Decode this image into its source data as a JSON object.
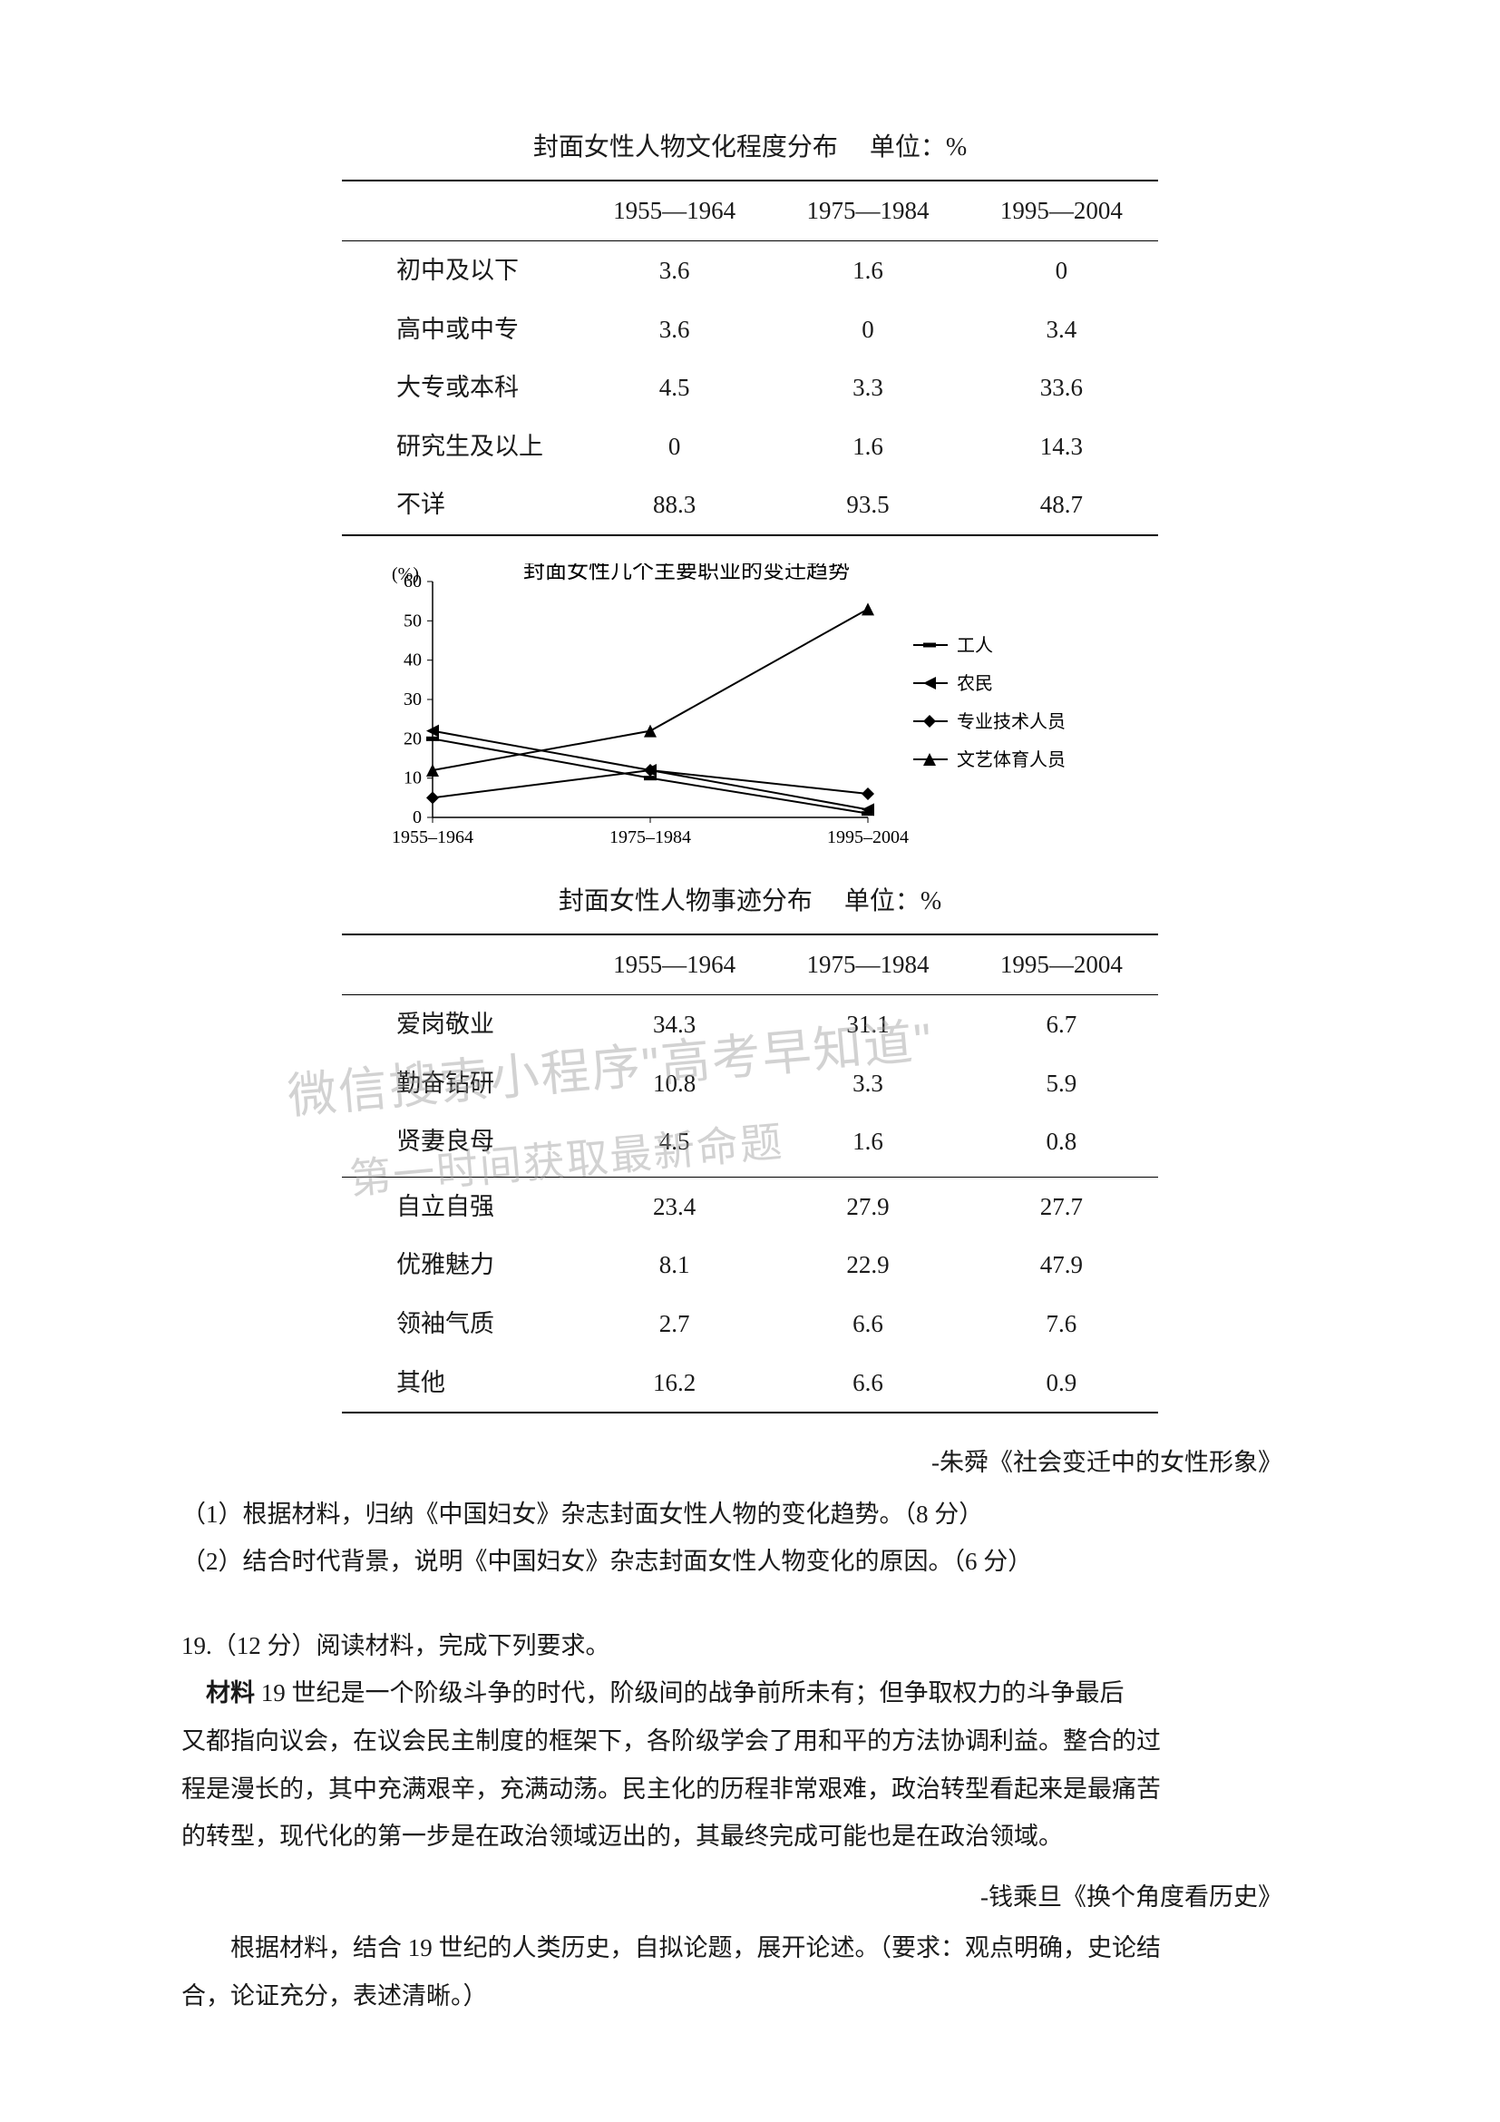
{
  "table1": {
    "caption": "封面女性人物文化程度分布",
    "caption_unit": "单位：%",
    "columns": [
      "1955—1964",
      "1975—1984",
      "1995—2004"
    ],
    "rows": [
      {
        "label": "初中及以下",
        "cells": [
          "3.6",
          "1.6",
          "0"
        ]
      },
      {
        "label": "高中或中专",
        "cells": [
          "3.6",
          "0",
          "3.4"
        ]
      },
      {
        "label": "大专或本科",
        "cells": [
          "4.5",
          "3.3",
          "33.6"
        ]
      },
      {
        "label": "研究生及以上",
        "cells": [
          "0",
          "1.6",
          "14.3"
        ]
      },
      {
        "label": "不详",
        "cells": [
          "88.3",
          "93.5",
          "48.7"
        ]
      }
    ]
  },
  "chart": {
    "type": "line",
    "title": "封面女性几个主要职业的变迁趋势",
    "y_label_unit": "(%)",
    "categories": [
      "1955–1964",
      "1975–1984",
      "1995–2004"
    ],
    "ylim": [
      0,
      60
    ],
    "ytick_step": 10,
    "line_color": "#000000",
    "axis_color": "#000000",
    "label_fontsize": 20,
    "axis_fontsize": 20,
    "series": [
      {
        "name": "工人",
        "values": [
          20,
          10,
          1
        ],
        "marker": "hbar"
      },
      {
        "name": "农民",
        "values": [
          22,
          12,
          2
        ],
        "marker": "tri-left"
      },
      {
        "name": "专业技术人员",
        "values": [
          5,
          12,
          6
        ],
        "marker": "diamond"
      },
      {
        "name": "文艺体育人员",
        "values": [
          12,
          22,
          53
        ],
        "marker": "tri-up"
      }
    ],
    "legend_items": [
      "工人",
      "农民",
      "专业技术人员",
      "文艺体育人员"
    ]
  },
  "table2": {
    "caption": "封面女性人物事迹分布",
    "caption_unit": "单位：%",
    "columns": [
      "1955—1964",
      "1975—1984",
      "1995—2004"
    ],
    "section_a": [
      {
        "label": "爱岗敬业",
        "cells": [
          "34.3",
          "31.1",
          "6.7"
        ]
      },
      {
        "label": "勤奋钻研",
        "cells": [
          "10.8",
          "3.3",
          "5.9"
        ]
      },
      {
        "label": "贤妻良母",
        "cells": [
          "4.5",
          "1.6",
          "0.8"
        ]
      }
    ],
    "section_b": [
      {
        "label": "自立自强",
        "cells": [
          "23.4",
          "27.9",
          "27.7"
        ]
      },
      {
        "label": "优雅魅力",
        "cells": [
          "8.1",
          "22.9",
          "47.9"
        ]
      },
      {
        "label": "领袖气质",
        "cells": [
          "2.7",
          "6.6",
          "7.6"
        ]
      },
      {
        "label": "其他",
        "cells": [
          "16.2",
          "6.6",
          "0.9"
        ]
      }
    ]
  },
  "source1": "-朱舜《社会变迁中的女性形象》",
  "q1": "（1）根据材料，归纳《中国妇女》杂志封面女性人物的变化趋势。（8 分）",
  "q2": "（2）结合时代背景，说明《中国妇女》杂志封面女性人物变化的原因。（6 分）",
  "q19_heading": "19.（12 分）阅读材料，完成下列要求。",
  "q19_mat_label": "材料",
  "q19_mat_body_line1": "19 世纪是一个阶级斗争的时代，阶级间的战争前所未有；但争取权力的斗争最后",
  "q19_mat_body_line2": "又都指向议会，在议会民主制度的框架下，各阶级学会了用和平的方法协调利益。整合的过",
  "q19_mat_body_line3": "程是漫长的，其中充满艰辛，充满动荡。民主化的历程非常艰难，政治转型看起来是最痛苦",
  "q19_mat_body_line4": "的转型，现代化的第一步是在政治领域迈出的，其最终完成可能也是在政治领域。",
  "source2": "-钱乘旦《换个角度看历史》",
  "q19_task_a": "根据材料，结合 19 世纪的人类历史，自拟论题，展开论述。（要求：观点明确，史论结",
  "q19_task_b": "合，论证充分，表述清晰。）",
  "watermark_line1": "微信搜索小程序\"高考早知道\"",
  "watermark_line2": "第一时间获取最新命题"
}
